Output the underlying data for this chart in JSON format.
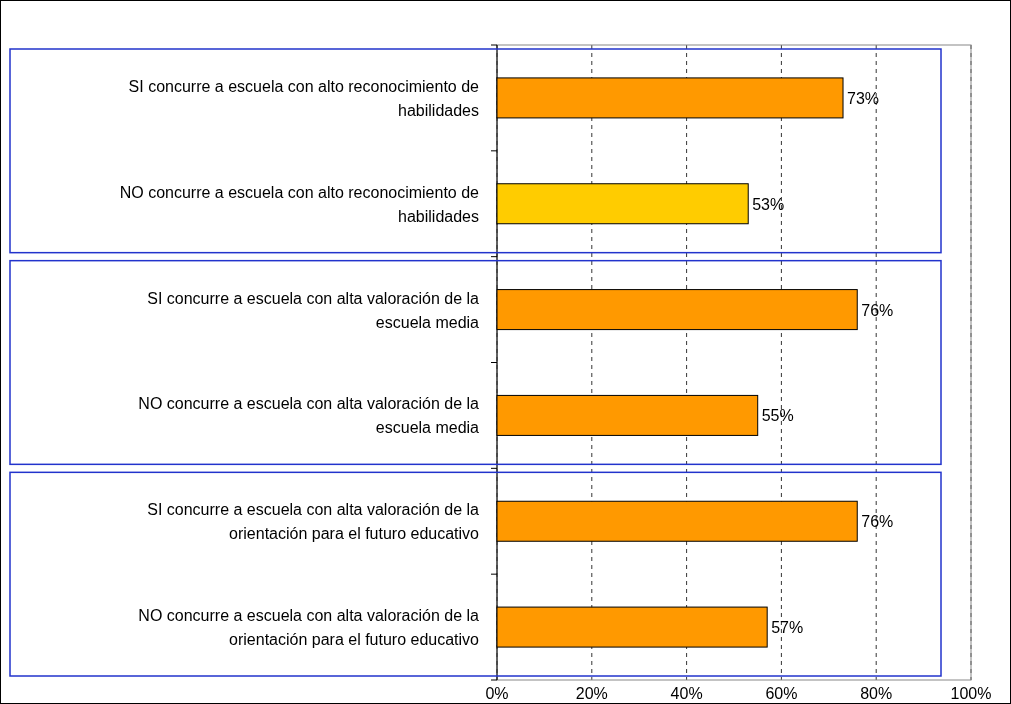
{
  "chart_data": {
    "type": "bar",
    "orientation": "horizontal",
    "categories": [
      "SI concurre a escuela con alto reconocimiento de habilidades",
      "NO concurre a escuela con alto reconocimiento de habilidades",
      "SI concurre a escuela con alta valoración de la escuela media",
      "NO concurre a escuela con alta valoración de la escuela media",
      "SI concurre a escuela con alta valoración de la orientación para el futuro educativo",
      "NO concurre a escuela con alta valoración de la orientación para el futuro educativo"
    ],
    "values": [
      73,
      53,
      76,
      55,
      76,
      57
    ],
    "colors": [
      "#ff9900",
      "#ffcc00",
      "#ff9900",
      "#ff9900",
      "#ff9900",
      "#ff9900"
    ],
    "value_labels": [
      "73%",
      "53%",
      "76%",
      "55%",
      "76%",
      "57%"
    ],
    "xlim": [
      0,
      100
    ],
    "xticks": [
      {
        "value": 0,
        "label": "0%"
      },
      {
        "value": 20,
        "label": "20%"
      },
      {
        "value": 40,
        "label": "40%"
      },
      {
        "value": 60,
        "label": "60%"
      },
      {
        "value": 80,
        "label": "80%"
      },
      {
        "value": 100,
        "label": "100%"
      }
    ],
    "grid": "x"
  }
}
